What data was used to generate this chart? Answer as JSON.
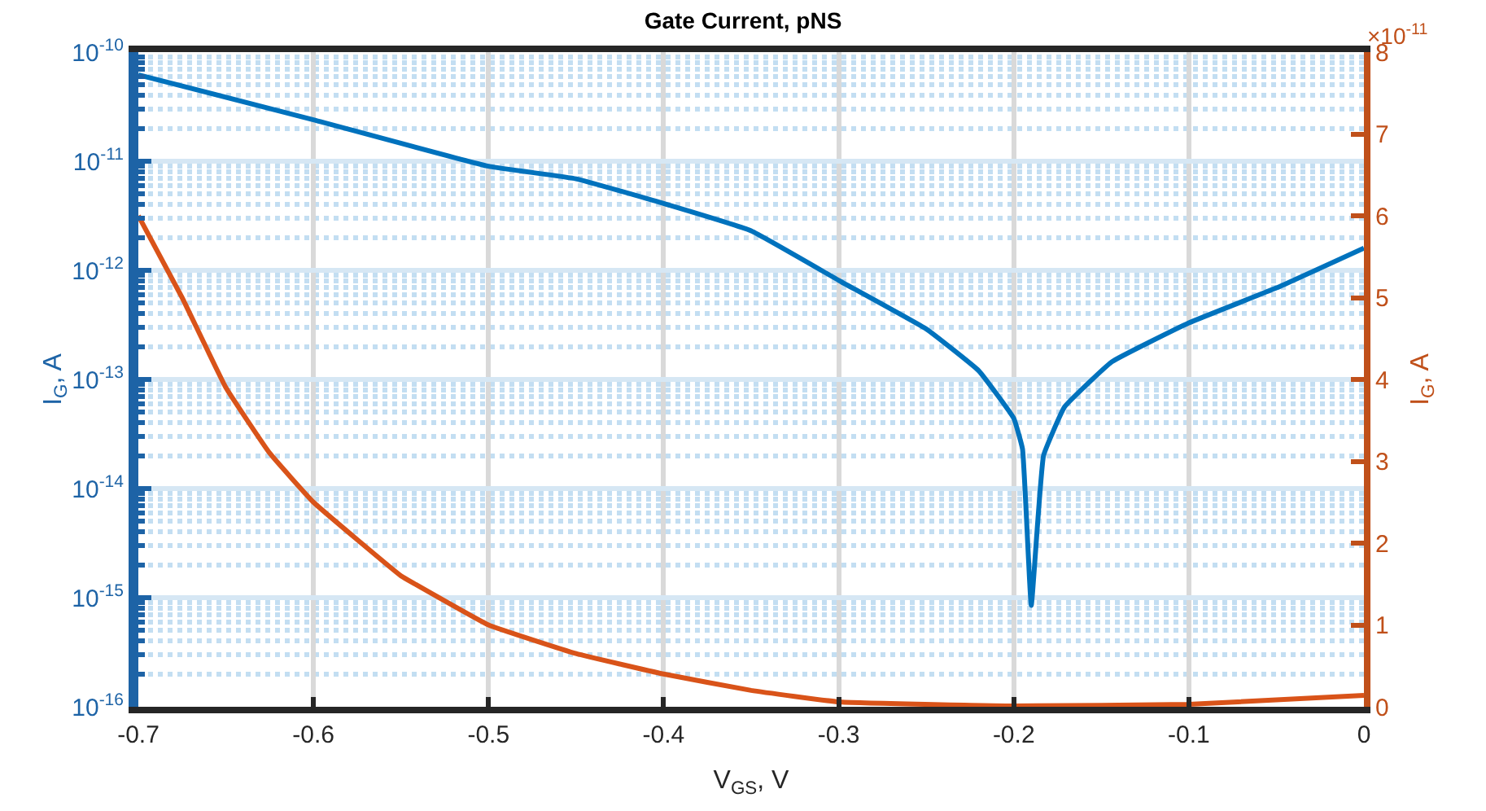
{
  "chart_data": {
    "type": "line",
    "title": "Gate Current, pNS",
    "xlabel": "V$_{GS}$, V",
    "ylabel": "I$_{G}$, A",
    "y2label": "I$_{G}$, A",
    "annotations": [
      "×10$^{-11}$"
    ],
    "log": "y",
    "grid": true,
    "line_style": "solid",
    "xlim": [
      -0.7,
      0
    ],
    "xticks": [
      -0.7,
      -0.6,
      -0.5,
      -0.4,
      -0.3,
      -0.2,
      -0.1,
      0
    ],
    "ylim": [
      1e-16,
      1e-10
    ],
    "yticks": [
      {
        "value": 1e-16,
        "label": "10$^{-16}$"
      },
      {
        "value": 1e-15,
        "label": "10$^{-15}$"
      },
      {
        "value": 1e-14,
        "label": "10$^{-14}$"
      },
      {
        "value": 1e-13,
        "label": "10$^{-13}$"
      },
      {
        "value": 1e-12,
        "label": "10$^{-12}$"
      },
      {
        "value": 1e-11,
        "label": "10$^{-11}$"
      },
      {
        "value": 1e-10,
        "label": "10$^{-10}$"
      },
      {
        "value": 2e-16,
        "label": null
      },
      {
        "value": 3e-16,
        "label": null
      },
      {
        "value": 4e-16,
        "label": null
      },
      {
        "value": 5e-16,
        "label": null
      },
      {
        "value": 6e-16,
        "label": null
      },
      {
        "value": 7e-16,
        "label": null
      },
      {
        "value": 8e-16,
        "label": null
      },
      {
        "value": 9e-16,
        "label": null
      },
      {
        "value": 2e-15,
        "label": null
      },
      {
        "value": 3e-15,
        "label": null
      },
      {
        "value": 4e-15,
        "label": null
      },
      {
        "value": 5e-15,
        "label": null
      },
      {
        "value": 6e-15,
        "label": null
      },
      {
        "value": 7e-15,
        "label": null
      },
      {
        "value": 8e-15,
        "label": null
      },
      {
        "value": 9e-15,
        "label": null
      },
      {
        "value": 2e-14,
        "label": null
      },
      {
        "value": 3e-14,
        "label": null
      },
      {
        "value": 4e-14,
        "label": null
      },
      {
        "value": 5e-14,
        "label": null
      },
      {
        "value": 6e-14,
        "label": null
      },
      {
        "value": 7e-14,
        "label": null
      },
      {
        "value": 8e-14,
        "label": null
      },
      {
        "value": 9e-14,
        "label": null
      },
      {
        "value": 2e-13,
        "label": null
      },
      {
        "value": 3e-13,
        "label": null
      },
      {
        "value": 4e-13,
        "label": null
      },
      {
        "value": 5e-13,
        "label": null
      },
      {
        "value": 6e-13,
        "label": null
      },
      {
        "value": 7e-13,
        "label": null
      },
      {
        "value": 8e-13,
        "label": null
      },
      {
        "value": 9e-13,
        "label": null
      },
      {
        "value": 2e-12,
        "label": null
      },
      {
        "value": 3e-12,
        "label": null
      },
      {
        "value": 4e-12,
        "label": null
      },
      {
        "value": 5e-12,
        "label": null
      },
      {
        "value": 6e-12,
        "label": null
      },
      {
        "value": 7e-12,
        "label": null
      },
      {
        "value": 8e-12,
        "label": null
      },
      {
        "value": 9e-12,
        "label": null
      },
      {
        "value": 2e-11,
        "label": null
      },
      {
        "value": 3e-11,
        "label": null
      },
      {
        "value": 4e-11,
        "label": null
      },
      {
        "value": 5e-11,
        "label": null
      },
      {
        "value": 6e-11,
        "label": null
      },
      {
        "value": 7e-11,
        "label": null
      },
      {
        "value": 8e-11,
        "label": null
      },
      {
        "value": 9e-11,
        "label": null
      }
    ],
    "y2lim": [
      0,
      8
    ],
    "y2ticks": [
      0,
      1,
      2,
      3,
      4,
      5,
      6,
      7,
      8
    ],
    "series": [
      {
        "color": "#0072bd",
        "x": [
          -0.7,
          -0.6,
          -0.5,
          -0.45,
          -0.4,
          -0.35,
          -0.3,
          -0.25,
          -0.22,
          -0.2,
          -0.195,
          -0.19,
          -0.183,
          -0.171,
          -0.144,
          -0.1,
          -0.05,
          0
        ],
        "values": [
          6.2e-11,
          2.4e-11,
          9e-12,
          6.9e-12,
          4.1e-12,
          2.3e-12,
          8.1e-13,
          2.9e-13,
          1.2e-13,
          4.4e-14,
          2.3e-14,
          8.5e-16,
          2e-14,
          5.6e-14,
          1.45e-13,
          3.3e-13,
          6.9e-13,
          1.6e-12
        ]
      },
      {
        "color": "#d95319",
        "axis": "y2",
        "x": [
          -0.7,
          -0.675,
          -0.65,
          -0.625,
          -0.6,
          -0.55,
          -0.542,
          -0.5,
          -0.45,
          -0.4,
          -0.35,
          -0.3,
          -0.2,
          -0.1,
          0
        ],
        "values": [
          6.0,
          5.0,
          3.9,
          3.1,
          2.5,
          1.6,
          1.5,
          1.0,
          0.65,
          0.4,
          0.2,
          0.06,
          0.01,
          0.03,
          0.14
        ]
      }
    ]
  }
}
